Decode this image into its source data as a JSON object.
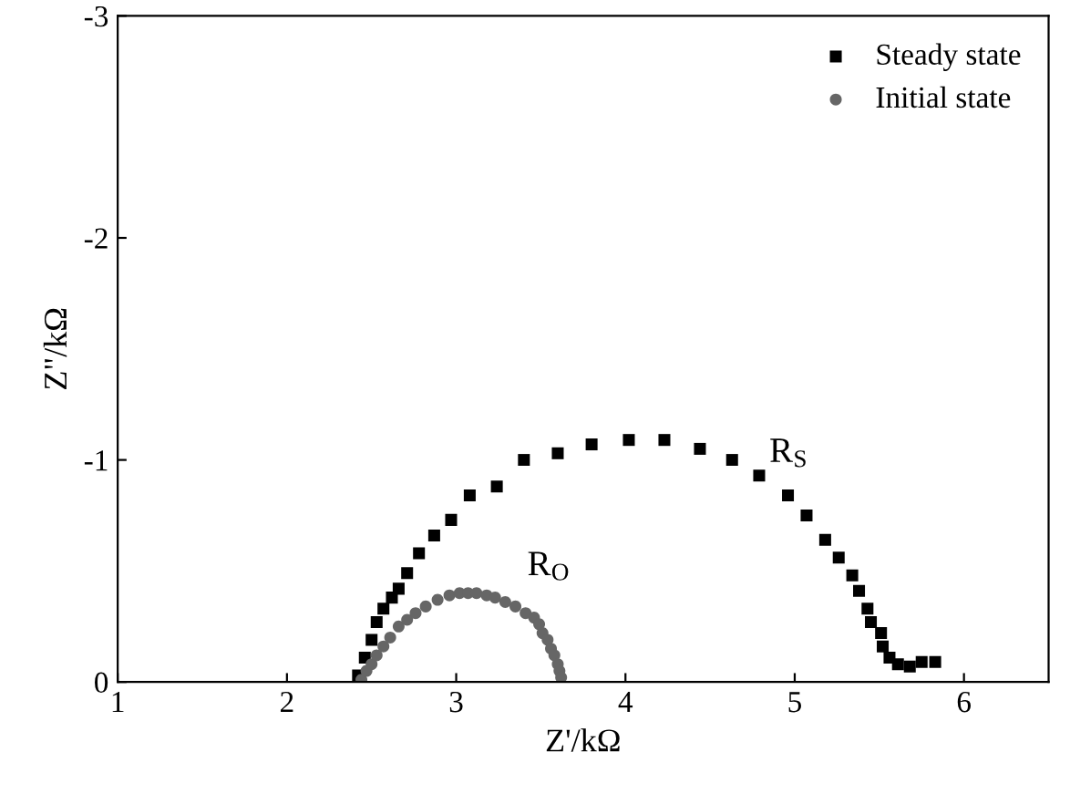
{
  "chart_data": {
    "type": "scatter",
    "xlabel": "Z'/kΩ",
    "ylabel": "Z\"/kΩ",
    "xlim": [
      1,
      6.5
    ],
    "xticks": [
      1,
      2,
      3,
      4,
      5,
      6
    ],
    "ylim": [
      0,
      -3
    ],
    "yticks": [
      0,
      -1,
      -2,
      -3
    ],
    "grid": false,
    "legend": "top right",
    "series": [
      {
        "name": "Steady state",
        "color": "#000000",
        "marker": "square",
        "x": [
          2.42,
          2.46,
          2.5,
          2.53,
          2.57,
          2.62,
          2.66,
          2.71,
          2.78,
          2.87,
          2.97,
          3.08,
          3.24,
          3.4,
          3.6,
          3.8,
          4.02,
          4.23,
          4.44,
          4.63,
          4.79,
          4.96,
          5.07,
          5.18,
          5.26,
          5.34,
          5.38,
          5.43,
          5.45,
          5.51,
          5.52,
          5.56,
          5.61,
          5.68,
          5.75,
          5.83
        ],
        "values": [
          -0.03,
          -0.11,
          -0.19,
          -0.27,
          -0.33,
          -0.38,
          -0.42,
          -0.49,
          -0.58,
          -0.66,
          -0.73,
          -0.84,
          -0.88,
          -1.0,
          -1.03,
          -1.07,
          -1.09,
          -1.09,
          -1.05,
          -1.0,
          -0.93,
          -0.84,
          -0.75,
          -0.64,
          -0.56,
          -0.48,
          -0.41,
          -0.33,
          -0.27,
          -0.22,
          -0.16,
          -0.11,
          -0.08,
          -0.07,
          -0.09,
          -0.09
        ]
      },
      {
        "name": "Initial state",
        "color": "#666666",
        "marker": "circle",
        "x": [
          2.44,
          2.47,
          2.5,
          2.53,
          2.57,
          2.61,
          2.66,
          2.71,
          2.76,
          2.82,
          2.89,
          2.96,
          3.02,
          3.07,
          3.12,
          3.18,
          3.23,
          3.29,
          3.35,
          3.41,
          3.46,
          3.49,
          3.51,
          3.54,
          3.56,
          3.58,
          3.6,
          3.61,
          3.62
        ],
        "values": [
          -0.01,
          -0.05,
          -0.08,
          -0.12,
          -0.16,
          -0.2,
          -0.25,
          -0.28,
          -0.31,
          -0.34,
          -0.37,
          -0.39,
          -0.4,
          -0.4,
          -0.4,
          -0.39,
          -0.38,
          -0.36,
          -0.34,
          -0.31,
          -0.29,
          -0.26,
          -0.22,
          -0.19,
          -0.15,
          -0.12,
          -0.08,
          -0.05,
          -0.02
        ]
      }
    ],
    "annotations": [
      "R$_{S}$",
      "R$_{O}$"
    ]
  }
}
